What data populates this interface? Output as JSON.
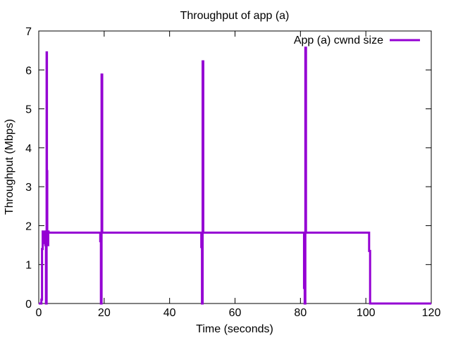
{
  "chart_data": {
    "type": "line",
    "title": "Throughput of app (a)",
    "xlabel": "Time (seconds)",
    "ylabel": "Throughput (Mbps)",
    "xlim": [
      0,
      120
    ],
    "ylim": [
      0,
      7
    ],
    "xticks": [
      0,
      20,
      40,
      60,
      80,
      100,
      120
    ],
    "yticks": [
      0,
      1,
      2,
      3,
      4,
      5,
      6,
      7
    ],
    "grid": false,
    "legend_position": "top-right",
    "series": [
      {
        "name": "App (a) cwnd size",
        "color": "#9400d3",
        "x": [
          0.0,
          0.8,
          0.8,
          1.0,
          1.0,
          1.2,
          1.2,
          1.4,
          1.4,
          1.6,
          1.6,
          2.0,
          2.0,
          2.2,
          2.2,
          2.4,
          2.4,
          2.5,
          2.5,
          2.6,
          2.6,
          2.7,
          2.7,
          2.8,
          2.8,
          2.9,
          2.9,
          3.0,
          3.0,
          18.8,
          18.8,
          19.0,
          19.0,
          19.2,
          19.2,
          19.4,
          19.4,
          49.7,
          49.7,
          49.9,
          49.9,
          50.1,
          50.1,
          50.3,
          50.3,
          81.1,
          81.1,
          81.3,
          81.3,
          81.5,
          81.5,
          81.7,
          81.7,
          101.0,
          101.0,
          101.3,
          101.3,
          101.5,
          101.5,
          120.0
        ],
        "y": [
          0,
          0,
          0.1,
          0.1,
          1.4,
          1.4,
          1.85,
          1.85,
          1.55,
          1.55,
          1.85,
          1.85,
          1.5,
          1.5,
          0,
          0,
          6.45,
          6.45,
          3.4,
          3.4,
          1.5,
          1.5,
          1.8,
          1.8,
          1.5,
          1.5,
          1.85,
          1.85,
          1.82,
          1.82,
          1.6,
          1.6,
          0,
          0,
          5.88,
          5.88,
          1.82,
          1.82,
          1.45,
          1.45,
          0,
          0,
          6.22,
          6.22,
          1.82,
          1.82,
          0.4,
          0.4,
          0,
          0,
          6.57,
          6.57,
          1.82,
          1.82,
          1.35,
          1.35,
          0,
          0,
          0,
          0
        ]
      }
    ],
    "extra_spikes": [
      {
        "x": 19.3,
        "y": 4.0
      },
      {
        "x": 50.4,
        "y": 4.0
      },
      {
        "x": 81.6,
        "y": 3.3
      }
    ]
  }
}
